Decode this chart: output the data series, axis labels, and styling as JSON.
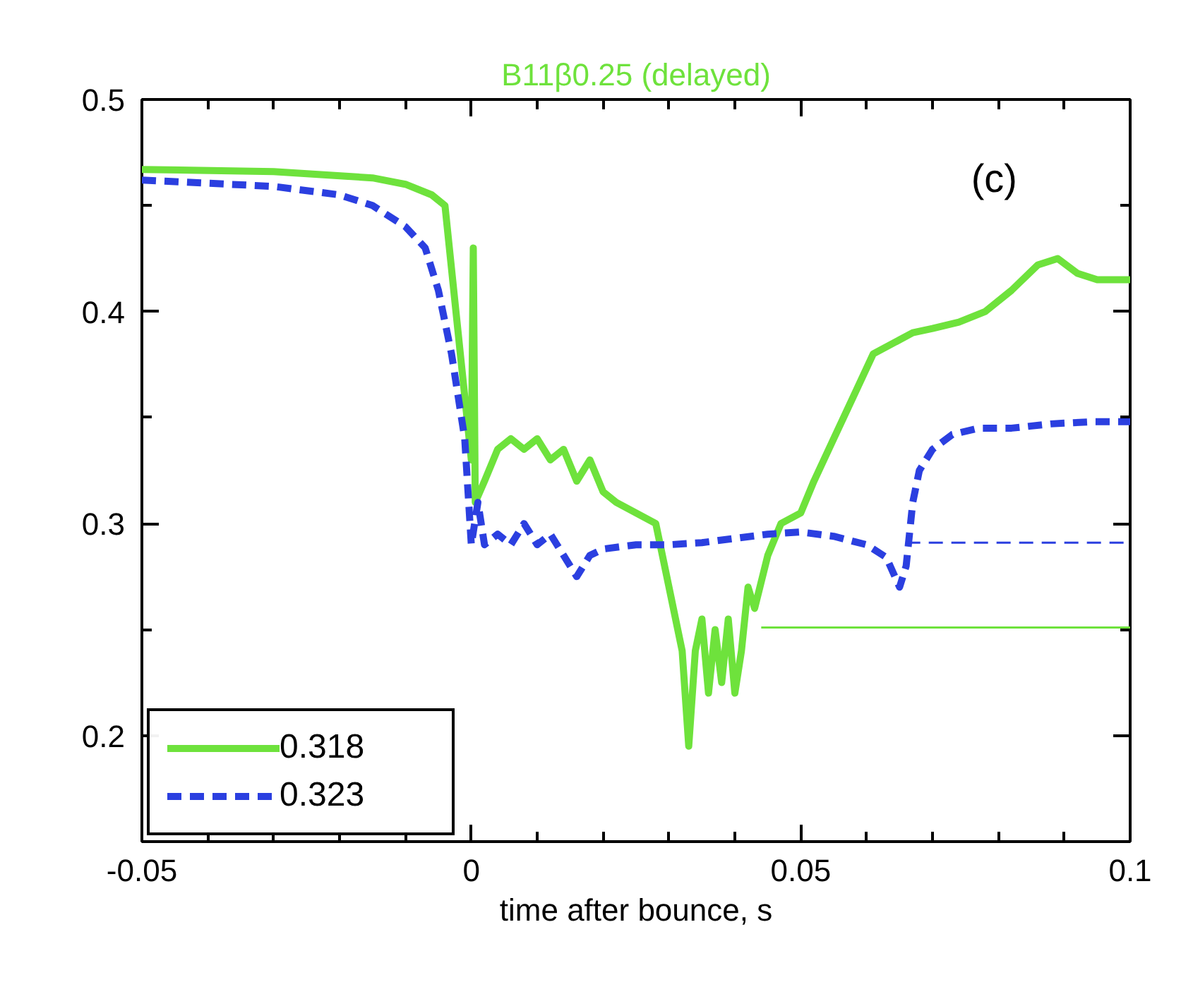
{
  "chart_data": {
    "type": "line",
    "title": "B11β0.25 (delayed)",
    "xlabel": "time after bounce, s",
    "xlim": [
      -0.05,
      0.1
    ],
    "ylim": [
      0.15,
      0.5
    ],
    "xticks": [
      -0.05,
      0,
      0.05,
      0.1
    ],
    "yticks": [
      0.2,
      0.3,
      0.4,
      0.5
    ],
    "grid": false,
    "legend": "bottom left",
    "marker": "none",
    "annotations": [
      "(c)"
    ],
    "series": [
      {
        "name": "0.318",
        "color": "#6ee23c",
        "line_style": "solid",
        "x": [
          -0.05,
          -0.03,
          -0.015,
          -0.01,
          -0.006,
          -0.004,
          -0.002,
          -0.001,
          0,
          0.0003,
          0.0006,
          0.002,
          0.004,
          0.006,
          0.008,
          0.01,
          0.012,
          0.014,
          0.016,
          0.018,
          0.02,
          0.022,
          0.025,
          0.028,
          0.03,
          0.032,
          0.033,
          0.034,
          0.035,
          0.036,
          0.037,
          0.038,
          0.039,
          0.04,
          0.041,
          0.042,
          0.043,
          0.045,
          0.047,
          0.05,
          0.052,
          0.055,
          0.058,
          0.061,
          0.064,
          0.067,
          0.07,
          0.074,
          0.078,
          0.082,
          0.086,
          0.089,
          0.092,
          0.095,
          0.1
        ],
        "values": [
          0.467,
          0.466,
          0.463,
          0.46,
          0.455,
          0.45,
          0.39,
          0.36,
          0.33,
          0.43,
          0.31,
          0.32,
          0.335,
          0.34,
          0.335,
          0.34,
          0.33,
          0.335,
          0.32,
          0.33,
          0.315,
          0.31,
          0.305,
          0.3,
          0.27,
          0.24,
          0.195,
          0.24,
          0.255,
          0.22,
          0.25,
          0.225,
          0.255,
          0.22,
          0.24,
          0.27,
          0.26,
          0.285,
          0.3,
          0.305,
          0.32,
          0.34,
          0.36,
          0.38,
          0.385,
          0.39,
          0.392,
          0.395,
          0.4,
          0.41,
          0.422,
          0.425,
          0.418,
          0.415,
          0.415
        ]
      },
      {
        "name": "0.323",
        "color": "#2b3fe0",
        "line_style": "dashed",
        "x": [
          -0.05,
          -0.03,
          -0.02,
          -0.015,
          -0.01,
          -0.007,
          -0.005,
          -0.003,
          -0.002,
          -0.001,
          0,
          0.001,
          0.002,
          0.004,
          0.006,
          0.008,
          0.01,
          0.012,
          0.014,
          0.016,
          0.018,
          0.02,
          0.025,
          0.03,
          0.035,
          0.04,
          0.045,
          0.05,
          0.055,
          0.06,
          0.063,
          0.065,
          0.066,
          0.067,
          0.068,
          0.07,
          0.073,
          0.077,
          0.082,
          0.088,
          0.094,
          0.1
        ],
        "values": [
          0.462,
          0.459,
          0.455,
          0.45,
          0.44,
          0.43,
          0.41,
          0.38,
          0.36,
          0.34,
          0.29,
          0.31,
          0.29,
          0.295,
          0.29,
          0.3,
          0.29,
          0.295,
          0.285,
          0.275,
          0.285,
          0.288,
          0.29,
          0.29,
          0.291,
          0.293,
          0.295,
          0.296,
          0.294,
          0.29,
          0.284,
          0.27,
          0.28,
          0.31,
          0.325,
          0.335,
          0.342,
          0.345,
          0.345,
          0.347,
          0.348,
          0.348
        ]
      },
      {
        "color": "#6ee23c",
        "line_style": "solid",
        "x": [
          0.044,
          0.1
        ],
        "values": [
          0.251,
          0.251
        ]
      },
      {
        "color": "#2b3fe0",
        "line_style": "dashed",
        "x": [
          0.066,
          0.1
        ],
        "values": [
          0.291,
          0.291
        ]
      }
    ]
  }
}
